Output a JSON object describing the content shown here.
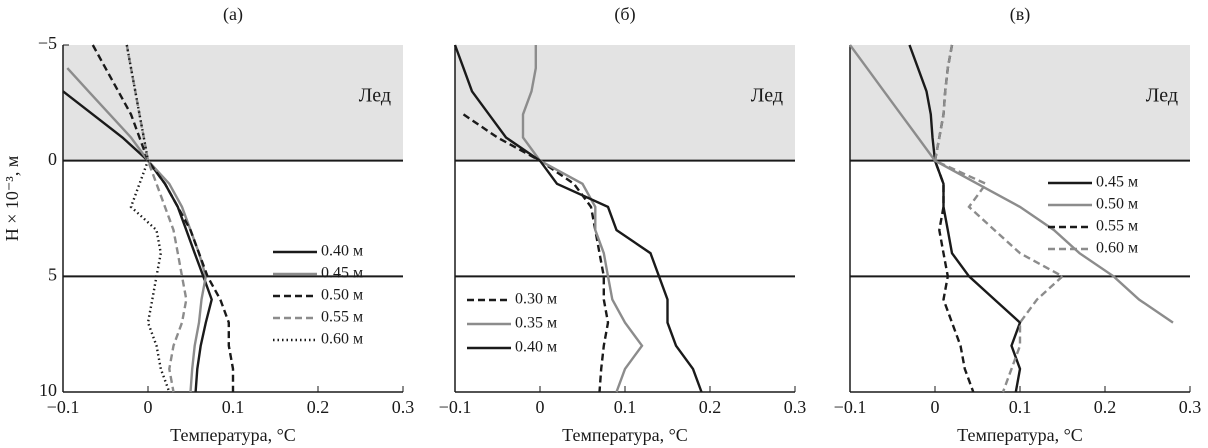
{
  "chart_data": [
    {
      "type": "line",
      "title": "(а)",
      "xlabel": "Температура, °C",
      "ylabel": "H × 10⁻³, м",
      "xlim": [
        -0.1,
        0.3
      ],
      "xticks": [
        {
          "value": -0.1,
          "label": "−0.1"
        },
        0,
        0.1,
        0.2,
        0.3
      ],
      "ylim": [
        -5,
        10
      ],
      "y_inverted": true,
      "yticks": [
        {
          "value": -5,
          "label": "−5"
        },
        0,
        5,
        10
      ],
      "ice_region": [
        -5,
        0
      ],
      "ice_label": "Лед",
      "hlines": [
        0,
        5
      ],
      "legend": "lower right",
      "y": [
        -5,
        -4,
        -3,
        -2,
        -1,
        0,
        1,
        2,
        3,
        4,
        5,
        6,
        7,
        8,
        9,
        10
      ],
      "series": [
        {
          "name": "0.40 м",
          "color": "#1a1a1a",
          "dash": "solid",
          "values": [
            null,
            null,
            -0.1,
            -0.065,
            -0.03,
            0,
            0.02,
            0.035,
            0.045,
            0.055,
            0.065,
            0.075,
            0.068,
            0.062,
            0.058,
            0.056
          ]
        },
        {
          "name": "0.45 м",
          "color": "#8c8c8c",
          "dash": "solid",
          "values": [
            null,
            -0.095,
            -0.07,
            -0.045,
            -0.02,
            0,
            0.025,
            0.04,
            0.05,
            0.06,
            0.068,
            0.063,
            0.06,
            0.055,
            0.052,
            0.05
          ]
        },
        {
          "name": "0.50 м",
          "color": "#1a1a1a",
          "dash": "dashed",
          "values": [
            -0.065,
            -0.05,
            -0.035,
            -0.02,
            -0.01,
            0,
            0.02,
            0.035,
            0.05,
            0.06,
            0.07,
            0.085,
            0.095,
            0.095,
            0.1,
            0.1
          ]
        },
        {
          "name": "0.55 м",
          "color": "#8c8c8c",
          "dash": "dashed",
          "values": [
            -0.025,
            -0.02,
            -0.015,
            -0.01,
            -0.005,
            0,
            0.01,
            0.02,
            0.03,
            0.035,
            0.04,
            0.045,
            0.04,
            0.03,
            0.025,
            0.03
          ]
        },
        {
          "name": "0.60 м",
          "color": "#1a1a1a",
          "dash": "dotted",
          "values": [
            -0.025,
            -0.02,
            -0.015,
            -0.01,
            -0.005,
            0,
            -0.01,
            -0.02,
            0.01,
            0.015,
            0.01,
            0.005,
            0,
            0.01,
            0.015,
            0.025
          ]
        }
      ]
    },
    {
      "type": "line",
      "title": "(б)",
      "xlabel": "Температура, °C",
      "xlim": [
        -0.1,
        0.3
      ],
      "xticks": [
        {
          "value": -0.1,
          "label": "−0.1"
        },
        0,
        0.1,
        0.2,
        0.3
      ],
      "ylim": [
        -5,
        10
      ],
      "y_inverted": true,
      "ice_region": [
        -5,
        0
      ],
      "ice_label": "Лед",
      "hlines": [
        0,
        5
      ],
      "legend": "lower left",
      "y": [
        -5,
        -4,
        -3,
        -2,
        -1,
        0,
        1,
        2,
        3,
        4,
        5,
        6,
        7,
        8,
        9,
        10
      ],
      "series": [
        {
          "name": "0.30 м",
          "color": "#1a1a1a",
          "dash": "dashed",
          "values": [
            null,
            null,
            null,
            -0.09,
            -0.05,
            0,
            0.04,
            0.06,
            0.065,
            0.07,
            0.075,
            0.075,
            0.08,
            0.075,
            0.072,
            0.07
          ]
        },
        {
          "name": "0.35 м",
          "color": "#8c8c8c",
          "dash": "solid",
          "values": [
            -0.005,
            -0.005,
            -0.01,
            -0.02,
            -0.02,
            0,
            0.05,
            0.065,
            0.065,
            0.075,
            0.08,
            0.085,
            0.1,
            0.12,
            0.1,
            0.09
          ]
        },
        {
          "name": "0.40 м",
          "color": "#1a1a1a",
          "dash": "solid",
          "values": [
            -0.1,
            -0.09,
            -0.08,
            -0.06,
            -0.04,
            0,
            0.02,
            0.08,
            0.09,
            0.13,
            0.14,
            0.15,
            0.15,
            0.16,
            0.18,
            0.19
          ]
        }
      ]
    },
    {
      "type": "line",
      "title": "(в)",
      "xlabel": "Температура, °C",
      "xlim": [
        -0.1,
        0.3
      ],
      "xticks": [
        {
          "value": -0.1,
          "label": "−0.1"
        },
        0,
        0.1,
        0.2,
        0.3
      ],
      "ylim": [
        -5,
        10
      ],
      "y_inverted": true,
      "ice_region": [
        -5,
        0
      ],
      "ice_label": "Лед",
      "hlines": [
        0,
        5
      ],
      "legend": "upper right",
      "y": [
        -5,
        -4,
        -3,
        -2,
        -1,
        0,
        1,
        2,
        3,
        4,
        5,
        6,
        7,
        8,
        9,
        10
      ],
      "series": [
        {
          "name": "0.45 м",
          "color": "#1a1a1a",
          "dash": "solid",
          "values": [
            -0.03,
            -0.02,
            -0.01,
            -0.005,
            -0.003,
            0,
            0.01,
            0.01,
            0.015,
            0.02,
            0.04,
            0.07,
            0.1,
            0.09,
            0.1,
            0.095
          ]
        },
        {
          "name": "0.50 м",
          "color": "#8c8c8c",
          "dash": "solid",
          "values": [
            -0.1,
            -0.08,
            -0.06,
            -0.04,
            -0.02,
            0,
            0.05,
            0.1,
            0.14,
            0.17,
            0.21,
            0.24,
            0.28,
            null,
            null,
            null
          ]
        },
        {
          "name": "0.55 м",
          "color": "#1a1a1a",
          "dash": "dashed",
          "values": [
            0.02,
            0.015,
            0.012,
            0.01,
            0.005,
            0,
            0.01,
            0.01,
            0.005,
            0.01,
            0.015,
            0.01,
            0.02,
            0.03,
            0.035,
            0.045
          ]
        },
        {
          "name": "0.60 м",
          "color": "#8c8c8c",
          "dash": "dashed",
          "values": [
            0.02,
            0.015,
            0.012,
            0.01,
            0.005,
            0,
            0.06,
            0.04,
            0.07,
            0.1,
            0.15,
            0.12,
            0.1,
            0.1,
            0.09,
            0.08
          ]
        }
      ]
    }
  ]
}
